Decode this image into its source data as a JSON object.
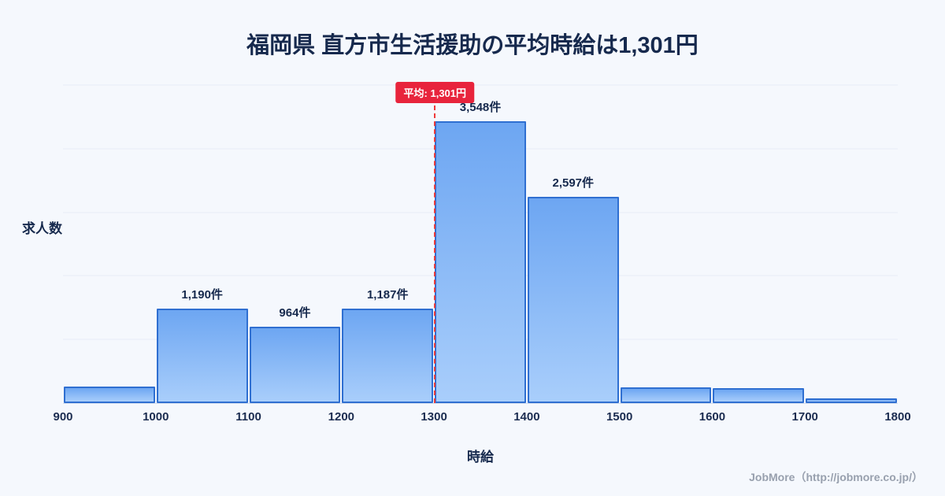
{
  "page": {
    "background": "#f5f8fd",
    "title": "福岡県 直方市生活援助の平均時給は1,301円",
    "footer": "JobMore（http://jobmore.co.jp/）"
  },
  "chart_data": {
    "type": "bar",
    "subtype": "histogram",
    "title": "福岡県 直方市生活援助の平均時給は1,301円",
    "xlabel": "時給",
    "ylabel": "求人数",
    "x_range": [
      900,
      1800
    ],
    "bin_width": 100,
    "x_ticks": [
      900,
      1000,
      1100,
      1200,
      1300,
      1400,
      1500,
      1600,
      1700,
      1800
    ],
    "ylim": [
      0,
      4000
    ],
    "grid_step": 800,
    "grid": "on",
    "legend": "none",
    "bars": [
      {
        "bin_start": 900,
        "bin_end": 1000,
        "value": 205,
        "label": null
      },
      {
        "bin_start": 1000,
        "bin_end": 1100,
        "value": 1190,
        "label": "1,190件"
      },
      {
        "bin_start": 1100,
        "bin_end": 1200,
        "value": 964,
        "label": "964件"
      },
      {
        "bin_start": 1200,
        "bin_end": 1300,
        "value": 1187,
        "label": "1,187件"
      },
      {
        "bin_start": 1300,
        "bin_end": 1400,
        "value": 3548,
        "label": "3,548件"
      },
      {
        "bin_start": 1400,
        "bin_end": 1500,
        "value": 2597,
        "label": "2,597件"
      },
      {
        "bin_start": 1500,
        "bin_end": 1600,
        "value": 200,
        "label": null
      },
      {
        "bin_start": 1600,
        "bin_end": 1700,
        "value": 190,
        "label": null
      },
      {
        "bin_start": 1700,
        "bin_end": 1800,
        "value": 55,
        "label": null
      }
    ],
    "average": {
      "value": 1301,
      "label": "平均: 1,301円",
      "line_color": "#ef3b3b",
      "badge_color": "#e8243c"
    },
    "colors": {
      "bar_gradient_top": "#6da6f2",
      "bar_gradient_bottom": "#a9cefb",
      "bar_border": "#2f6fd1",
      "gridline": "#e6edf7",
      "text": "#16294d",
      "footer_text": "#98a0ae"
    }
  }
}
